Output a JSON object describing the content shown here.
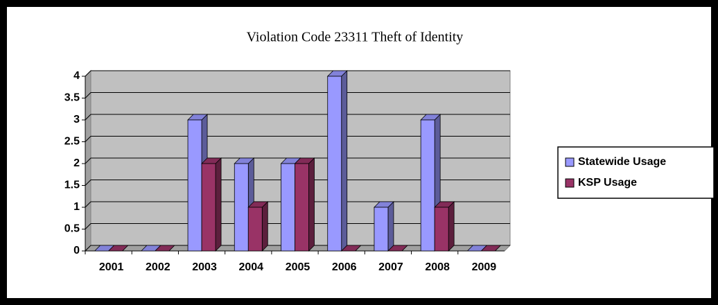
{
  "chart_data": {
    "type": "bar",
    "title": "Violation Code 23311 Theft of Identity",
    "categories": [
      "2001",
      "2002",
      "2003",
      "2004",
      "2005",
      "2006",
      "2007",
      "2008",
      "2009"
    ],
    "series": [
      {
        "name": "Statewide Usage",
        "color": "#9999ff",
        "values": [
          0,
          0,
          3,
          2,
          2,
          4,
          1,
          3,
          0
        ]
      },
      {
        "name": "KSP Usage",
        "color": "#993366",
        "values": [
          0,
          0,
          2,
          1,
          2,
          0,
          0,
          1,
          0
        ]
      }
    ],
    "ylim": [
      0,
      4
    ],
    "yticks": [
      0,
      0.5,
      1,
      1.5,
      2,
      2.5,
      3,
      3.5,
      4
    ],
    "grid": true,
    "legend": "right"
  }
}
